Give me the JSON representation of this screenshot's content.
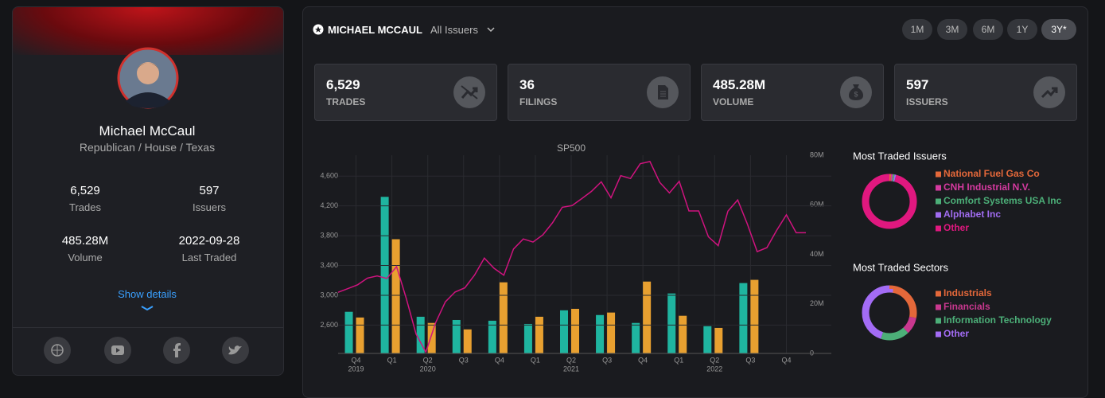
{
  "profile": {
    "name": "Michael McCaul",
    "subtitle": "Republican / House / Texas",
    "stats": [
      {
        "value": "6,529",
        "label": "Trades"
      },
      {
        "value": "597",
        "label": "Issuers"
      },
      {
        "value": "485.28M",
        "label": "Volume"
      },
      {
        "value": "2022-09-28",
        "label": "Last Traded"
      }
    ],
    "show_details": "Show details"
  },
  "header": {
    "name": "MICHAEL MCCAUL",
    "filter": "All Issuers",
    "periods": [
      "1M",
      "3M",
      "6M",
      "1Y",
      "3Y*"
    ]
  },
  "stat_cards": [
    {
      "value": "6,529",
      "label": "TRADES"
    },
    {
      "value": "36",
      "label": "FILINGS"
    },
    {
      "value": "485.28M",
      "label": "VOLUME"
    },
    {
      "value": "597",
      "label": "ISSUERS"
    }
  ],
  "chart_data": [
    {
      "type": "bar",
      "categories": [
        "Q4",
        "Q1",
        "Q2",
        "Q3",
        "Q4",
        "Q1",
        "Q2",
        "Q3",
        "Q4",
        "Q1",
        "Q2",
        "Q3",
        "Q4"
      ],
      "category_years": [
        "2019",
        null,
        "2020",
        null,
        null,
        null,
        "2021",
        null,
        null,
        null,
        "2022",
        null,
        null
      ],
      "series": [
        {
          "color": "#1fb5a0",
          "axis": "y2",
          "values": [
            16.8,
            63.2,
            14.8,
            13.5,
            13.2,
            11.9,
            17.4,
            15.5,
            12.3,
            24.2,
            11,
            28.4,
            null
          ]
        },
        {
          "color": "#e8a030",
          "axis": "y2",
          "values": [
            14.5,
            46.1,
            12.3,
            9.7,
            28.7,
            14.8,
            18,
            16.5,
            29,
            15.2,
            10.3,
            29.7,
            null
          ]
        }
      ],
      "y2lim": [
        0,
        80
      ],
      "y2ticks": [
        0,
        {
          "value": 20,
          "label": "20M"
        },
        {
          "value": 40,
          "label": "40M"
        },
        {
          "value": 60,
          "label": "60M"
        },
        {
          "value": 80,
          "label": "80M"
        }
      ],
      "grid": true
    },
    {
      "type": "line",
      "title": "SP500",
      "color": "#d0137f",
      "values": [
        3040,
        3090,
        3141,
        3231,
        3260,
        3226,
        3386,
        2954,
        2480,
        2237,
        2630,
        2912,
        3044,
        3100,
        3271,
        3500,
        3363,
        3270,
        3622,
        3756,
        3714,
        3811,
        3973,
        4181,
        4204,
        4298,
        4395,
        4523,
        4308,
        4605,
        4567,
        4766,
        4796,
        4516,
        4374,
        4530,
        4132,
        4132,
        3785,
        3666,
        4130,
        4280,
        3955,
        3586,
        3640,
        3872,
        4080,
        3840,
        3840
      ],
      "ylim": [
        2220,
        4880
      ],
      "yticks": [
        {
          "value": 2600,
          "label": "2,600"
        },
        {
          "value": 3000,
          "label": "3,000"
        },
        {
          "value": 3400,
          "label": "3,400"
        },
        {
          "value": 3800,
          "label": "3,800"
        },
        {
          "value": 4200,
          "label": "4,200"
        },
        {
          "value": 4600,
          "label": "4,600"
        }
      ]
    },
    {
      "type": "donut",
      "title": "Most Traded Issuers",
      "categories": [
        "National Fuel Gas Co",
        "CNH Industrial N.V.",
        "Comfort Systems USA Inc",
        "Alphabet Inc",
        "Other"
      ],
      "values": [
        1,
        1,
        1,
        1,
        96
      ],
      "colors": [
        "#e4683a",
        "#d63aa0",
        "#4caf78",
        "#a06cf0",
        "#e0187f"
      ]
    },
    {
      "type": "donut",
      "title": "Most Traded Sectors",
      "categories": [
        "Industrials",
        "Financials",
        "Information Technology",
        "Other"
      ],
      "values": [
        28,
        10,
        17,
        45
      ],
      "colors": [
        "#e4683a",
        "#c9388f",
        "#4caf78",
        "#a36cf5"
      ]
    }
  ]
}
